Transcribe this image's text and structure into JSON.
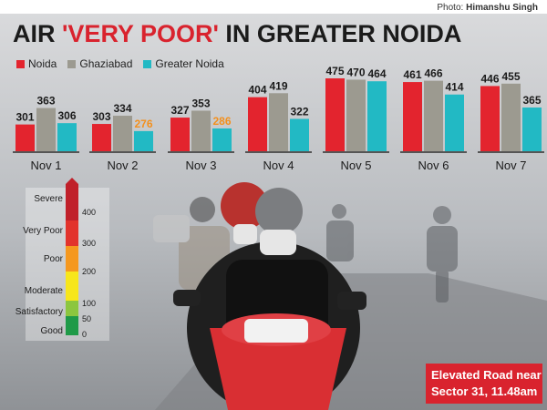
{
  "credit": {
    "prefix": "Photo:",
    "name": "Himanshu Singh"
  },
  "headline": {
    "part1": "AIR ",
    "highlight": "'VERY POOR'",
    "part2": " IN GREATER NOIDA"
  },
  "caption": {
    "line1": "Elevated Road near",
    "line2": "Sector 31, 11.48am"
  },
  "colors": {
    "noida": "#e3242e",
    "ghaziabad": "#9c9a90",
    "greater_noida": "#22b9c4",
    "orange_label": "#f3901d"
  },
  "chart_data": {
    "type": "bar",
    "categories": [
      "Nov 1",
      "Nov 2",
      "Nov 3",
      "Nov 4",
      "Nov 5",
      "Nov 6",
      "Nov 7"
    ],
    "series": [
      {
        "name": "Noida",
        "values": [
          301,
          303,
          327,
          404,
          475,
          461,
          446
        ]
      },
      {
        "name": "Ghaziabad",
        "values": [
          363,
          334,
          353,
          419,
          470,
          466,
          455
        ]
      },
      {
        "name": "Greater Noida",
        "values": [
          306,
          276,
          286,
          322,
          464,
          414,
          365
        ]
      }
    ],
    "title": "AIR 'VERY POOR' IN GREATER NOIDA",
    "legend_position": "top-left",
    "grid": false
  },
  "aqi_scale": {
    "categories": [
      "Severe",
      "Very Poor",
      "Poor",
      "Moderate",
      "Satisfactory",
      "Good"
    ],
    "ticks": [
      "400",
      "300",
      "200",
      "100",
      "50",
      "0"
    ],
    "colors": [
      "#c0202a",
      "#e2332c",
      "#f5981f",
      "#f7e61c",
      "#8cc63f",
      "#1f9a48"
    ]
  }
}
